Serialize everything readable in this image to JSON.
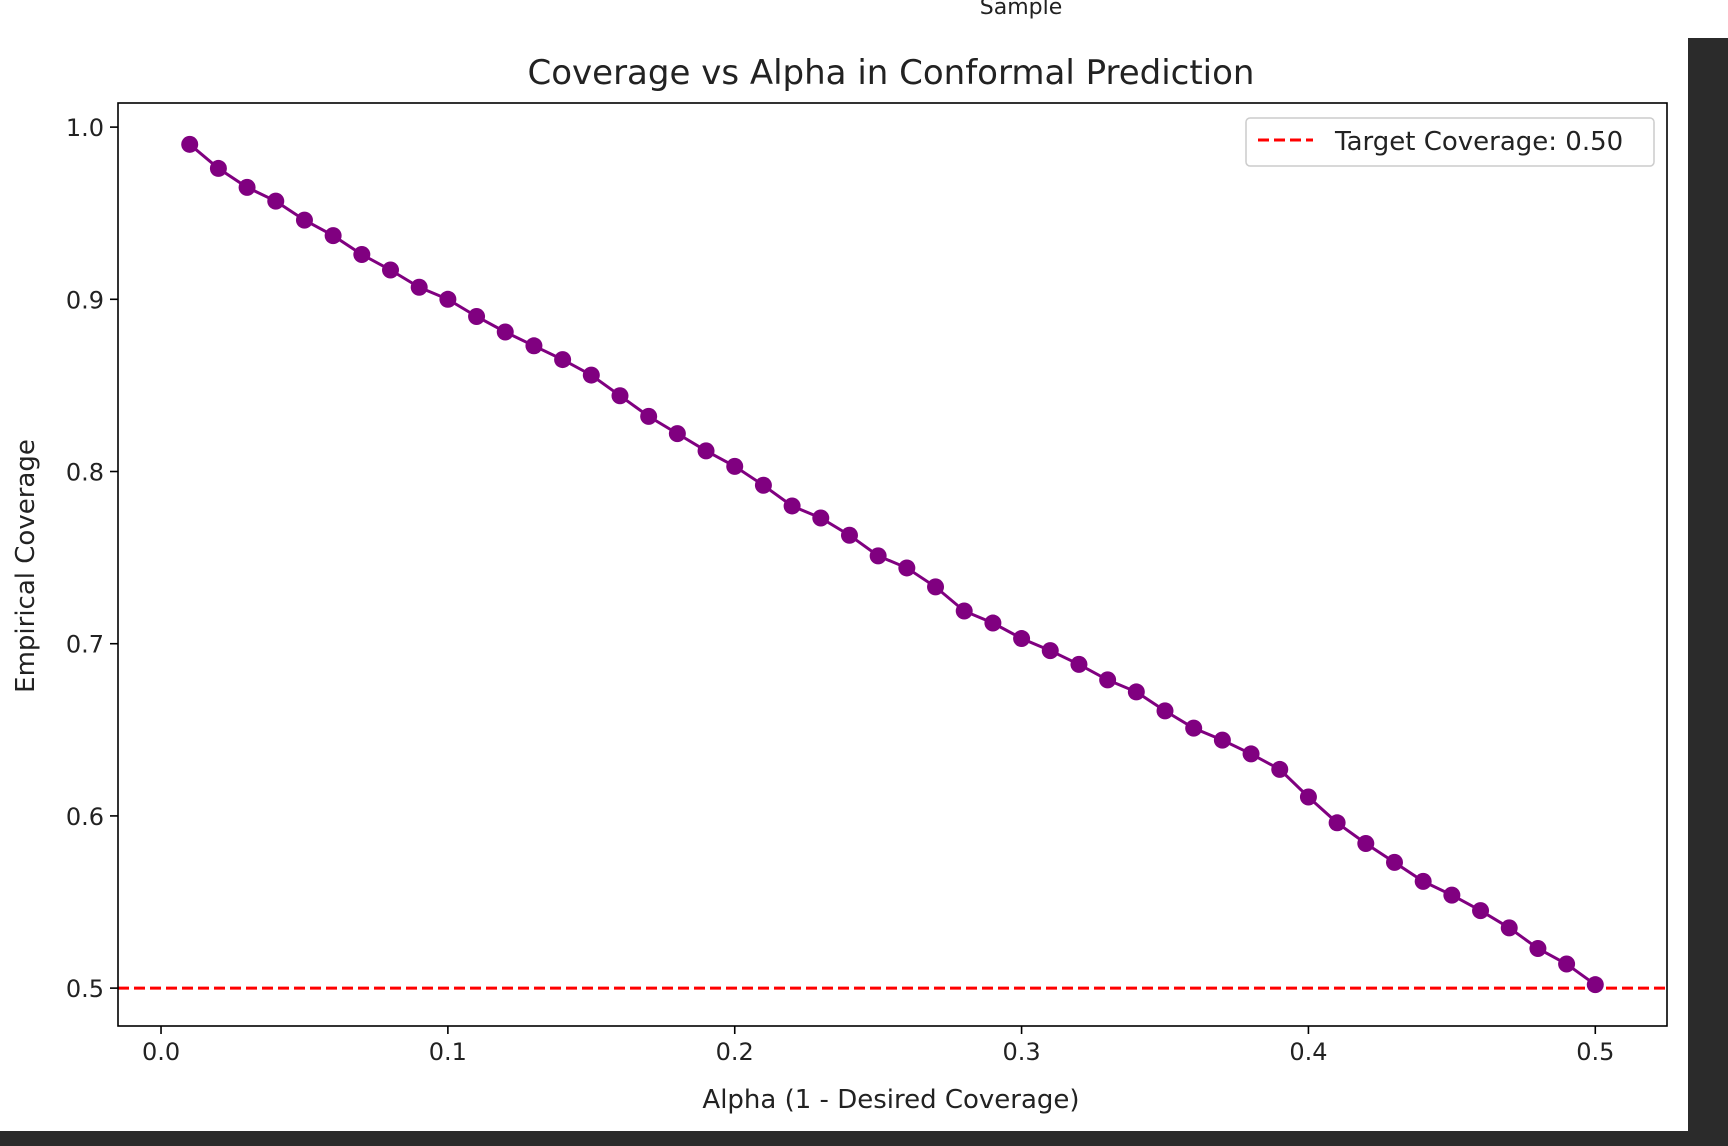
{
  "header_text": "Sample",
  "chart_data": {
    "type": "line",
    "title": "Coverage vs Alpha in Conformal Prediction",
    "xlabel": "Alpha (1 - Desired Coverage)",
    "ylabel": "Empirical Coverage",
    "xlim": [
      -0.015,
      0.525
    ],
    "ylim": [
      0.478,
      1.014
    ],
    "xticks": [
      0.0,
      0.1,
      0.2,
      0.3,
      0.4,
      0.5
    ],
    "xtick_labels": [
      "0.0",
      "0.1",
      "0.2",
      "0.3",
      "0.4",
      "0.5"
    ],
    "yticks": [
      0.5,
      0.6,
      0.7,
      0.8,
      0.9,
      1.0
    ],
    "ytick_labels": [
      "0.5",
      "0.6",
      "0.7",
      "0.8",
      "0.9",
      "1.0"
    ],
    "grid": false,
    "legend_position": "top-right",
    "series": [
      {
        "color": "#800080",
        "marker": "circle",
        "x": [
          0.01,
          0.02,
          0.03,
          0.04,
          0.05,
          0.06,
          0.07,
          0.08,
          0.09,
          0.1,
          0.11,
          0.12,
          0.13,
          0.14,
          0.15,
          0.16,
          0.17,
          0.18,
          0.19,
          0.2,
          0.21,
          0.22,
          0.23,
          0.24,
          0.25,
          0.26,
          0.27,
          0.28,
          0.29,
          0.3,
          0.31,
          0.32,
          0.33,
          0.34,
          0.35,
          0.36,
          0.37,
          0.38,
          0.39,
          0.4,
          0.41,
          0.42,
          0.43,
          0.44,
          0.45,
          0.46,
          0.47,
          0.48,
          0.49,
          0.5
        ],
        "y": [
          0.99,
          0.976,
          0.965,
          0.957,
          0.946,
          0.937,
          0.926,
          0.917,
          0.907,
          0.9,
          0.89,
          0.881,
          0.873,
          0.865,
          0.856,
          0.844,
          0.832,
          0.822,
          0.812,
          0.803,
          0.792,
          0.78,
          0.773,
          0.763,
          0.751,
          0.744,
          0.733,
          0.719,
          0.712,
          0.703,
          0.696,
          0.688,
          0.679,
          0.672,
          0.661,
          0.651,
          0.644,
          0.636,
          0.627,
          0.611,
          0.596,
          0.584,
          0.573,
          0.562,
          0.554,
          0.545,
          0.535,
          0.523,
          0.514,
          0.502
        ]
      }
    ],
    "reference_lines": [
      {
        "orientation": "horizontal",
        "y": 0.5,
        "color": "#ff0000",
        "style": "dashed",
        "label": "Target Coverage: 0.50"
      }
    ]
  }
}
